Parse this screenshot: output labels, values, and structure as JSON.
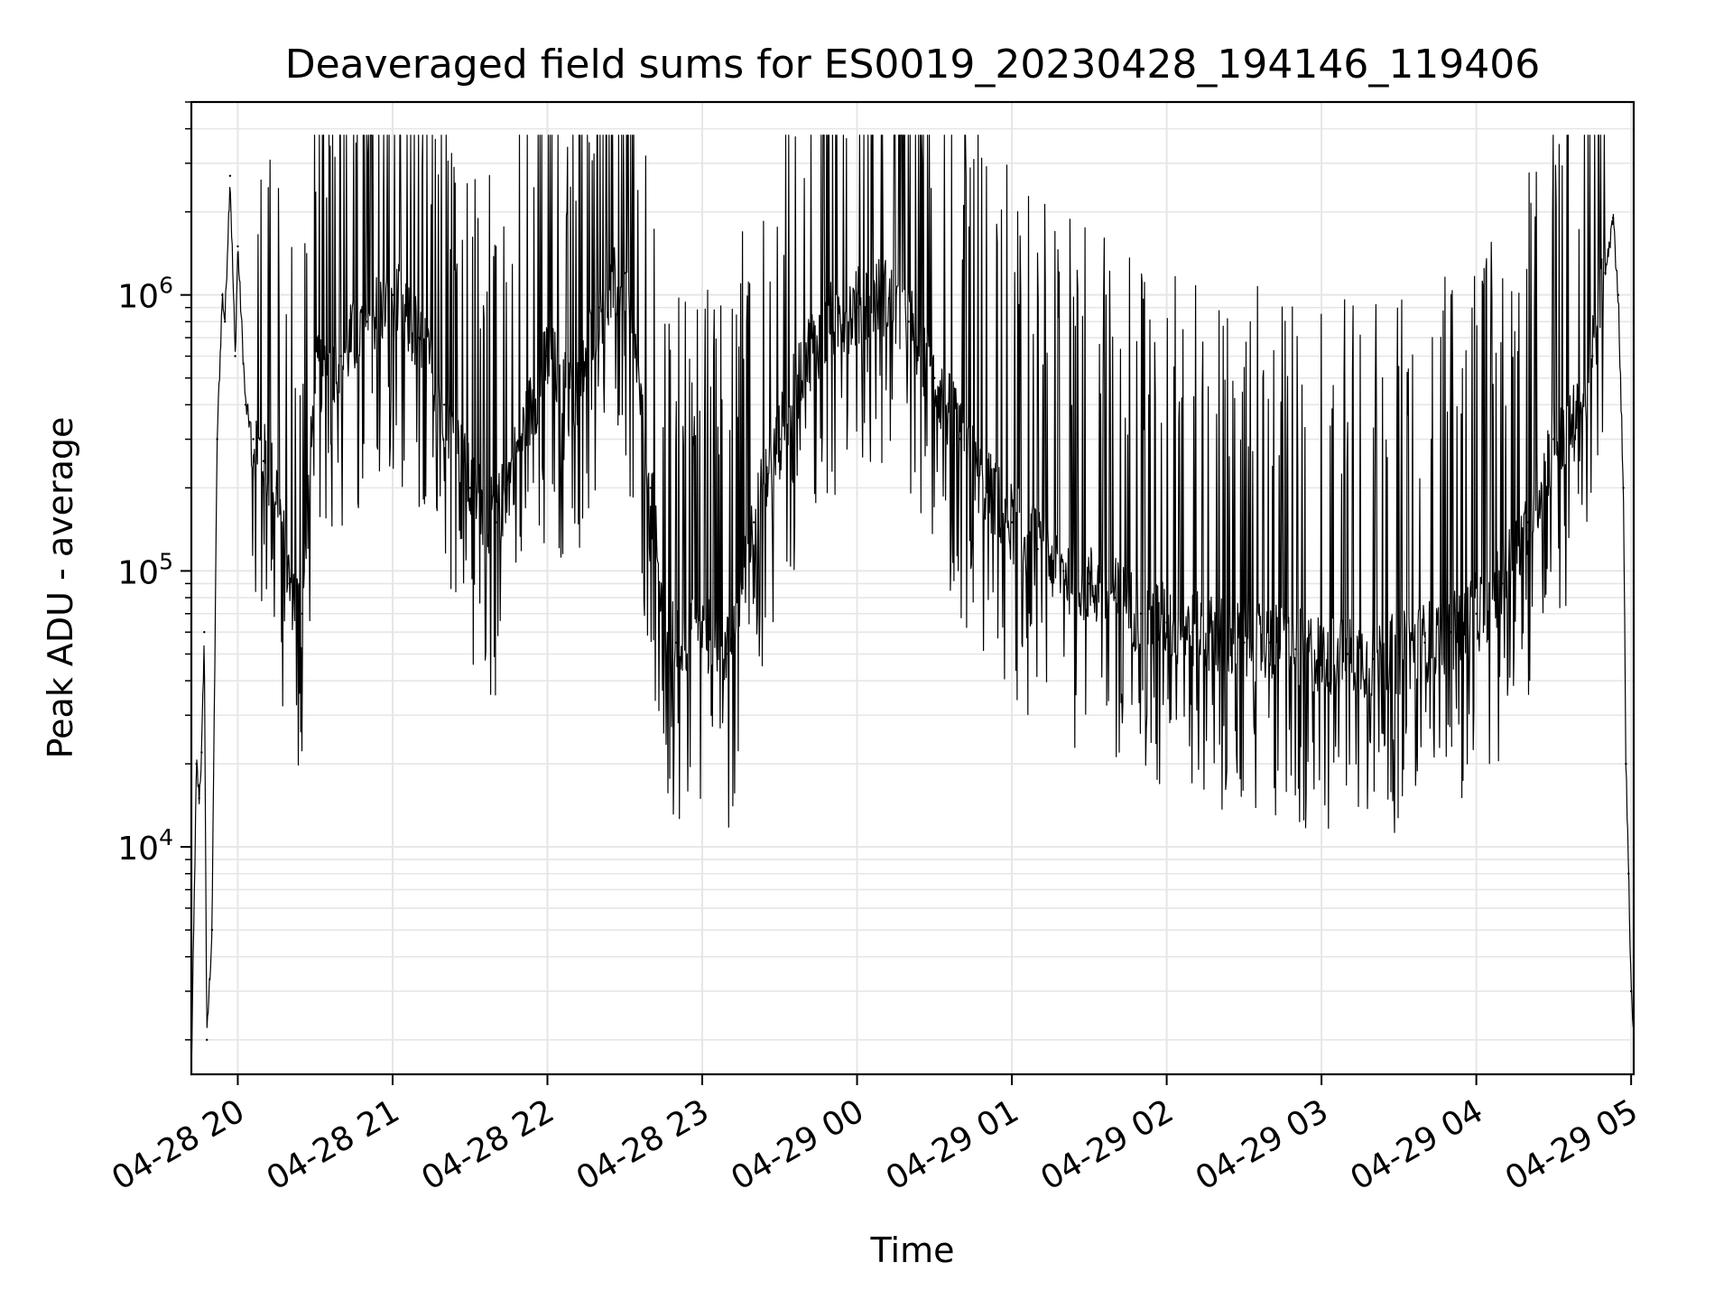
{
  "chart_data": {
    "type": "line",
    "title": "Deaveraged field sums for ES0019_20230428_194146_119406",
    "xlabel": "Time",
    "ylabel": "Peak ADU - average",
    "y_scale": "log",
    "grid": true,
    "line_color": "#000000",
    "grid_color": "#e6e6e6",
    "x_range": [
      "04-28 19:42",
      "04-29 05:01"
    ],
    "ylim": [
      1500,
      5000000
    ],
    "x_ticks": [
      "04-28 20",
      "04-28 21",
      "04-28 22",
      "04-28 23",
      "04-29 00",
      "04-29 01",
      "04-29 02",
      "04-29 03",
      "04-29 04",
      "04-29 05"
    ],
    "y_ticks": [
      {
        "value": 10000,
        "base": "10",
        "exp": "4"
      },
      {
        "value": 100000,
        "base": "10",
        "exp": "5"
      },
      {
        "value": 1000000,
        "base": "10",
        "exp": "6"
      }
    ],
    "series": [
      {
        "x": [
          "04-28 19:42",
          "04-28 19:44",
          "04-28 19:45",
          "04-28 19:46",
          "04-28 19:47",
          "04-28 19:48",
          "04-28 19:50",
          "04-28 19:52",
          "04-28 19:54",
          "04-28 19:55",
          "04-28 19:57",
          "04-28 19:59",
          "04-28 20:00",
          "04-28 20:03",
          "04-28 20:06",
          "04-28 20:10",
          "04-28 20:15",
          "04-28 20:20",
          "04-28 20:25",
          "04-28 20:30",
          "04-28 20:40",
          "04-28 20:50",
          "04-28 21:00",
          "04-28 21:10",
          "04-28 21:20",
          "04-28 21:30",
          "04-28 21:40",
          "04-28 21:50",
          "04-28 22:00",
          "04-28 22:10",
          "04-28 22:20",
          "04-28 22:30",
          "04-28 22:40",
          "04-28 22:45",
          "04-28 22:50",
          "04-28 23:00",
          "04-28 23:10",
          "04-28 23:20",
          "04-28 23:30",
          "04-28 23:40",
          "04-28 23:50",
          "04-29 00:00",
          "04-29 00:10",
          "04-29 00:20",
          "04-29 00:30",
          "04-29 00:40",
          "04-29 00:50",
          "04-29 01:00",
          "04-29 01:10",
          "04-29 01:20",
          "04-29 01:30",
          "04-29 01:40",
          "04-29 01:50",
          "04-29 02:00",
          "04-29 02:10",
          "04-29 02:20",
          "04-29 02:30",
          "04-29 02:40",
          "04-29 02:50",
          "04-29 03:00",
          "04-29 03:10",
          "04-29 03:20",
          "04-29 03:30",
          "04-29 03:40",
          "04-29 03:50",
          "04-29 04:00",
          "04-29 04:10",
          "04-29 04:20",
          "04-29 04:30",
          "04-29 04:40",
          "04-29 04:45",
          "04-29 04:50",
          "04-29 04:53",
          "04-29 04:55",
          "04-29 04:57",
          "04-29 04:58",
          "04-29 04:59",
          "04-29 05:00",
          "04-29 05:01"
        ],
        "y": [
          1500,
          20000,
          15000,
          22000,
          60000,
          2000,
          5000,
          300000,
          1000000,
          800000,
          2700000,
          600000,
          1500000,
          400000,
          300000,
          250000,
          200000,
          90000,
          70000,
          500000,
          600000,
          800000,
          1000000,
          700000,
          400000,
          200000,
          150000,
          300000,
          600000,
          400000,
          900000,
          1200000,
          200000,
          60000,
          55000,
          60000,
          50000,
          150000,
          300000,
          600000,
          800000,
          900000,
          1000000,
          800000,
          500000,
          300000,
          200000,
          150000,
          120000,
          100000,
          90000,
          80000,
          70000,
          65000,
          60000,
          58000,
          55000,
          55000,
          52000,
          50000,
          50000,
          48000,
          50000,
          55000,
          60000,
          70000,
          90000,
          150000,
          300000,
          350000,
          600000,
          1200000,
          1900000,
          1000000,
          200000,
          20000,
          8000,
          3000,
          2300
        ]
      }
    ]
  }
}
